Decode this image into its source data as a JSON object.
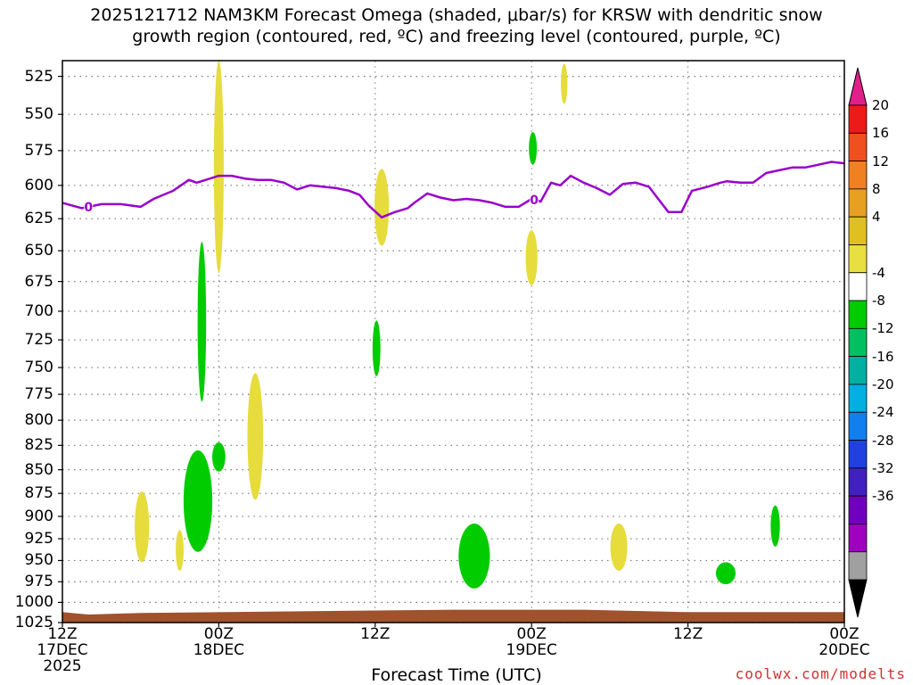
{
  "title": "2025121712 NAM3KM Forecast Omega (shaded, μbar/s) for KRSW with dendritic snow",
  "subtitle": "growth region (contoured, red, ºC) and freezing level (contoured, purple, ºC)",
  "xlabel": "Forecast Time (UTC)",
  "credit": "coolwx.com/modelts",
  "chart_data": {
    "type": "time-height",
    "y_axis": {
      "reversed": true,
      "ylim": [
        1025,
        515
      ],
      "ticks": [
        525,
        550,
        575,
        600,
        625,
        650,
        675,
        700,
        725,
        750,
        775,
        800,
        825,
        850,
        875,
        900,
        925,
        950,
        975,
        1000,
        1025
      ]
    },
    "x_axis": {
      "range_hours": [
        0,
        60
      ],
      "ticks": [
        {
          "h": 0,
          "l1": "12Z",
          "l2": "17DEC",
          "l3": "2025"
        },
        {
          "h": 12,
          "l1": "00Z",
          "l2": "18DEC",
          "l3": ""
        },
        {
          "h": 24,
          "l1": "12Z",
          "l2": "",
          "l3": ""
        },
        {
          "h": 36,
          "l1": "00Z",
          "l2": "19DEC",
          "l3": ""
        },
        {
          "h": 48,
          "l1": "12Z",
          "l2": "",
          "l3": ""
        },
        {
          "h": 60,
          "l1": "00Z",
          "l2": "20DEC",
          "l3": ""
        }
      ]
    },
    "grid": true,
    "freezing_level": {
      "label": "0",
      "color": "#9900cc",
      "points": [
        [
          0,
          613
        ],
        [
          1.5,
          617
        ],
        [
          3,
          614
        ],
        [
          4.5,
          614
        ],
        [
          6,
          616
        ],
        [
          7,
          610
        ],
        [
          8.5,
          604
        ],
        [
          9.7,
          596
        ],
        [
          10.3,
          598
        ],
        [
          11,
          596
        ],
        [
          12,
          593
        ],
        [
          13,
          593
        ],
        [
          14,
          595
        ],
        [
          15,
          596
        ],
        [
          16,
          596
        ],
        [
          17,
          598
        ],
        [
          18,
          603
        ],
        [
          19,
          600
        ],
        [
          20,
          601
        ],
        [
          21,
          602
        ],
        [
          22,
          604
        ],
        [
          22.8,
          607
        ],
        [
          23.5,
          615
        ],
        [
          24.5,
          624
        ],
        [
          25.5,
          620
        ],
        [
          26.5,
          617
        ],
        [
          27,
          613
        ],
        [
          28,
          606
        ],
        [
          29,
          609
        ],
        [
          30,
          611
        ],
        [
          31,
          610
        ],
        [
          32,
          611
        ],
        [
          33,
          613
        ],
        [
          34,
          616
        ],
        [
          35,
          616
        ],
        [
          36,
          610
        ],
        [
          36.7,
          612
        ],
        [
          37.5,
          598
        ],
        [
          38.2,
          600
        ],
        [
          39,
          593
        ],
        [
          40,
          598
        ],
        [
          41,
          602
        ],
        [
          42,
          607
        ],
        [
          43,
          599
        ],
        [
          44,
          598
        ],
        [
          45,
          601
        ],
        [
          45.8,
          611
        ],
        [
          46.5,
          620
        ],
        [
          47.5,
          620
        ],
        [
          48.3,
          604
        ],
        [
          49.5,
          601
        ],
        [
          50.5,
          598
        ],
        [
          51,
          597
        ],
        [
          52,
          598
        ],
        [
          53,
          598
        ],
        [
          54,
          591
        ],
        [
          55,
          589
        ],
        [
          56,
          587
        ],
        [
          57,
          587
        ],
        [
          58,
          585
        ],
        [
          59,
          583
        ],
        [
          60,
          584
        ]
      ],
      "labels_at_hours": [
        2,
        36.2
      ]
    },
    "omega_cells": [
      {
        "h": 12,
        "p1": 515,
        "p2": 668,
        "w": 0.55,
        "value": 5
      },
      {
        "h": 10.7,
        "p1": 643,
        "p2": 782,
        "w": 0.45,
        "value": -5
      },
      {
        "h": 14.8,
        "p1": 755,
        "p2": 882,
        "w": 1.0,
        "value": 5
      },
      {
        "h": 12,
        "p1": 822,
        "p2": 852,
        "w": 0.8,
        "value": -5
      },
      {
        "h": 10.4,
        "p1": 830,
        "p2": 940,
        "w": 2.0,
        "value": -5
      },
      {
        "h": 6.1,
        "p1": 873,
        "p2": 952,
        "w": 0.9,
        "value": 5
      },
      {
        "h": 9.0,
        "p1": 915,
        "p2": 962,
        "w": 0.4,
        "value": 5
      },
      {
        "h": 24.5,
        "p1": 588,
        "p2": 646,
        "w": 0.9,
        "value": 5
      },
      {
        "h": 24.1,
        "p1": 708,
        "p2": 758,
        "w": 0.4,
        "value": -5
      },
      {
        "h": 31.6,
        "p1": 908,
        "p2": 983,
        "w": 2.2,
        "value": -5
      },
      {
        "h": 38.5,
        "p1": 517,
        "p2": 543,
        "w": 0.3,
        "value": 5
      },
      {
        "h": 36.1,
        "p1": 562,
        "p2": 585,
        "w": 0.4,
        "value": -5
      },
      {
        "h": 36.0,
        "p1": 634,
        "p2": 678,
        "w": 0.7,
        "value": 5
      },
      {
        "h": 42.7,
        "p1": 908,
        "p2": 962,
        "w": 1.1,
        "value": 5
      },
      {
        "h": 50.9,
        "p1": 952,
        "p2": 978,
        "w": 1.3,
        "value": -5
      },
      {
        "h": 54.7,
        "p1": 888,
        "p2": 934,
        "w": 0.5,
        "value": -5
      }
    ],
    "ground": {
      "color": "#a0522d",
      "points": [
        [
          0,
          1012
        ],
        [
          2,
          1015
        ],
        [
          6,
          1013
        ],
        [
          30,
          1009
        ],
        [
          40,
          1009
        ],
        [
          48,
          1012
        ],
        [
          60,
          1012
        ]
      ]
    },
    "colorbar": {
      "labels": [
        20,
        16,
        12,
        8,
        4,
        -4,
        -8,
        -12,
        -16,
        -20,
        -24,
        -28,
        -32,
        -36
      ],
      "colors": [
        "#ee1a1a",
        "#f04f1f",
        "#f08020",
        "#e8a020",
        "#e0c020",
        "#e8e040",
        "#ffffff",
        "#00cc00",
        "#00c060",
        "#00b0a0",
        "#00b0e0",
        "#1080f0",
        "#2040e0",
        "#4020c0",
        "#7000c0",
        "#a000c0",
        "#a0a0a0"
      ],
      "top_arrow": "#e0208a",
      "bottom_arrow": "#000000"
    }
  }
}
